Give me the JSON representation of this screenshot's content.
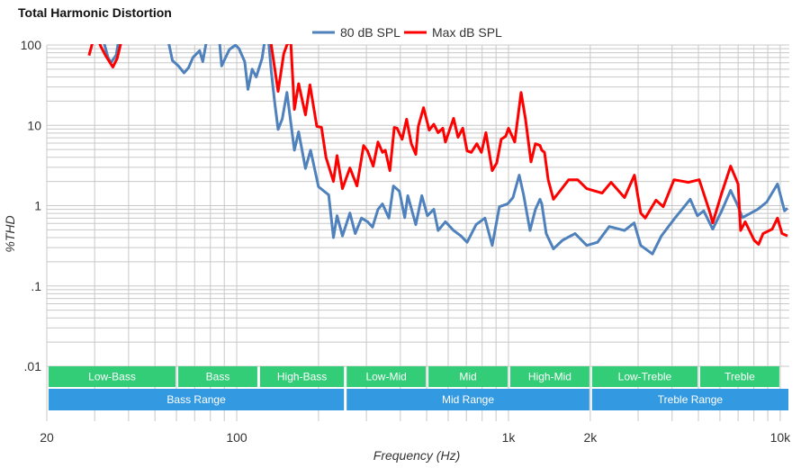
{
  "chart_data": {
    "type": "line",
    "title": "Total Harmonic Distortion",
    "xlabel": "Frequency (Hz)",
    "ylabel": "%THD",
    "xscale": "log",
    "yscale": "log",
    "xlim": [
      20,
      10800
    ],
    "ylim": [
      0.01,
      100
    ],
    "grid": true,
    "legend_position": "top-center",
    "x_ticks": [
      {
        "value": 20,
        "label": "20"
      },
      {
        "value": 100,
        "label": "100"
      },
      {
        "value": 1000,
        "label": "1k"
      },
      {
        "value": 2000,
        "label": "2k"
      },
      {
        "value": 10000,
        "label": "10k"
      }
    ],
    "y_ticks": [
      {
        "value": 100,
        "label": "100"
      },
      {
        "value": 10,
        "label": "10"
      },
      {
        "value": 1,
        "label": "1"
      },
      {
        "value": 0.1,
        "label": ".1"
      },
      {
        "value": 0.01,
        "label": ".01"
      }
    ],
    "series": [
      {
        "name": "80 dB SPL",
        "color": "#4f81bd",
        "points": [
          [
            31.6,
            150
          ],
          [
            33.6,
            70
          ],
          [
            34.4,
            60
          ],
          [
            36,
            75
          ],
          [
            37,
            130
          ],
          [
            55,
            150
          ],
          [
            58,
            64
          ],
          [
            61,
            55
          ],
          [
            64,
            45
          ],
          [
            66.5,
            52
          ],
          [
            69,
            70
          ],
          [
            73,
            85
          ],
          [
            75,
            62
          ],
          [
            78,
            130
          ],
          [
            86,
            130
          ],
          [
            88,
            55
          ],
          [
            91,
            70
          ],
          [
            94,
            88
          ],
          [
            99,
            100
          ],
          [
            102,
            90
          ],
          [
            107,
            62
          ],
          [
            110,
            28
          ],
          [
            114,
            50
          ],
          [
            118,
            40
          ],
          [
            124,
            68
          ],
          [
            128,
            140
          ],
          [
            131,
            110
          ],
          [
            134,
            47
          ],
          [
            138,
            19
          ],
          [
            142,
            8.9
          ],
          [
            147,
            12
          ],
          [
            153,
            25.7
          ],
          [
            163,
            4.9
          ],
          [
            169,
            8.3
          ],
          [
            179,
            2.9
          ],
          [
            187,
            4.9
          ],
          [
            200,
            1.72
          ],
          [
            218,
            1.36
          ],
          [
            227,
            0.4
          ],
          [
            234,
            0.75
          ],
          [
            245,
            0.42
          ],
          [
            261,
            0.81
          ],
          [
            273,
            0.45
          ],
          [
            288,
            0.7
          ],
          [
            303,
            0.63
          ],
          [
            316,
            0.54
          ],
          [
            331,
            0.9
          ],
          [
            344,
            1.05
          ],
          [
            363,
            0.7
          ],
          [
            377,
            1.76
          ],
          [
            397,
            1.51
          ],
          [
            415,
            0.71
          ],
          [
            426,
            1.33
          ],
          [
            456,
            0.58
          ],
          [
            480,
            1.33
          ],
          [
            503,
            0.75
          ],
          [
            531,
            0.9
          ],
          [
            551,
            0.49
          ],
          [
            586,
            0.63
          ],
          [
            628,
            0.49
          ],
          [
            668,
            0.42
          ],
          [
            704,
            0.35
          ],
          [
            760,
            0.58
          ],
          [
            819,
            0.7
          ],
          [
            871,
            0.32
          ],
          [
            926,
            0.97
          ],
          [
            992,
            1.05
          ],
          [
            1039,
            1.26
          ],
          [
            1095,
            2.4
          ],
          [
            1137,
            1.36
          ],
          [
            1200,
            0.49
          ],
          [
            1256,
            0.9
          ],
          [
            1306,
            1.2
          ],
          [
            1326,
            1.05
          ],
          [
            1377,
            0.45
          ],
          [
            1463,
            0.29
          ],
          [
            1580,
            0.37
          ],
          [
            1758,
            0.45
          ],
          [
            1941,
            0.32
          ],
          [
            2126,
            0.35
          ],
          [
            2348,
            0.55
          ],
          [
            2673,
            0.49
          ],
          [
            2900,
            0.61
          ],
          [
            3067,
            0.32
          ],
          [
            3386,
            0.25
          ],
          [
            3654,
            0.42
          ],
          [
            4098,
            0.7
          ],
          [
            4665,
            1.2
          ],
          [
            4956,
            0.75
          ],
          [
            5230,
            0.86
          ],
          [
            5645,
            0.51
          ],
          [
            6090,
            0.86
          ],
          [
            6570,
            1.55
          ],
          [
            6935,
            1.05
          ],
          [
            7260,
            0.71
          ],
          [
            8265,
            0.9
          ],
          [
            8920,
            1.11
          ],
          [
            9770,
            1.86
          ],
          [
            10370,
            0.86
          ],
          [
            10640,
            0.93
          ]
        ]
      },
      {
        "name": "Max dB SPL",
        "color": "#ff0000",
        "points": [
          [
            28.6,
            74
          ],
          [
            29.3,
            100
          ],
          [
            30,
            150
          ],
          [
            31.6,
            96
          ],
          [
            32.9,
            74
          ],
          [
            35,
            53
          ],
          [
            36.3,
            68
          ],
          [
            37.7,
            115
          ],
          [
            38.2,
            150
          ],
          [
            132.5,
            150
          ],
          [
            134,
            100
          ],
          [
            142,
            26.5
          ],
          [
            149,
            78
          ],
          [
            153,
            100
          ],
          [
            158,
            115
          ],
          [
            163,
            15.8
          ],
          [
            169,
            33
          ],
          [
            179,
            13.5
          ],
          [
            186,
            32
          ],
          [
            197,
            9.7
          ],
          [
            205,
            9.4
          ],
          [
            213,
            4.0
          ],
          [
            227,
            2.0
          ],
          [
            234,
            4.2
          ],
          [
            245,
            1.63
          ],
          [
            261,
            2.95
          ],
          [
            277,
            1.76
          ],
          [
            293,
            5.6
          ],
          [
            303,
            4.8
          ],
          [
            318,
            3.1
          ],
          [
            331,
            6.2
          ],
          [
            344,
            4.6
          ],
          [
            352,
            4.9
          ],
          [
            366,
            2.73
          ],
          [
            380,
            9.4
          ],
          [
            389,
            9.2
          ],
          [
            406,
            6.7
          ],
          [
            422,
            11.9
          ],
          [
            439,
            5.9
          ],
          [
            456,
            4.35
          ],
          [
            466,
            9.7
          ],
          [
            487,
            16.6
          ],
          [
            511,
            8.7
          ],
          [
            531,
            10.3
          ],
          [
            551,
            8.1
          ],
          [
            573,
            9.2
          ],
          [
            586,
            6.2
          ],
          [
            628,
            12.2
          ],
          [
            652,
            7.1
          ],
          [
            679,
            9.2
          ],
          [
            704,
            4.8
          ],
          [
            730,
            4.6
          ],
          [
            765,
            5.9
          ],
          [
            795,
            4.6
          ],
          [
            826,
            8.1
          ],
          [
            871,
            2.73
          ],
          [
            905,
            3.4
          ],
          [
            940,
            6.7
          ],
          [
            977,
            7.3
          ],
          [
            1000,
            9.2
          ],
          [
            1054,
            6.2
          ],
          [
            1113,
            25.7
          ],
          [
            1155,
            11.9
          ],
          [
            1210,
            3.5
          ],
          [
            1256,
            5.9
          ],
          [
            1306,
            5.6
          ],
          [
            1326,
            4.9
          ],
          [
            1357,
            4.6
          ],
          [
            1400,
            2.1
          ],
          [
            1463,
            1.2
          ],
          [
            1545,
            1.51
          ],
          [
            1666,
            2.1
          ],
          [
            1797,
            2.1
          ],
          [
            1941,
            1.63
          ],
          [
            2210,
            1.43
          ],
          [
            2385,
            1.95
          ],
          [
            2673,
            1.26
          ],
          [
            2906,
            2.4
          ],
          [
            3067,
            0.81
          ],
          [
            3186,
            0.7
          ],
          [
            3492,
            1.17
          ],
          [
            3711,
            0.97
          ],
          [
            4067,
            2.1
          ],
          [
            4595,
            1.95
          ],
          [
            5034,
            2.1
          ],
          [
            5520,
            0.81
          ],
          [
            5645,
            0.61
          ],
          [
            6090,
            1.43
          ],
          [
            6570,
            3.1
          ],
          [
            7000,
            1.86
          ],
          [
            7150,
            0.49
          ],
          [
            7430,
            0.63
          ],
          [
            8020,
            0.37
          ],
          [
            8330,
            0.33
          ],
          [
            8650,
            0.45
          ],
          [
            9340,
            0.51
          ],
          [
            9770,
            0.7
          ],
          [
            10150,
            0.45
          ],
          [
            10640,
            0.42
          ]
        ]
      }
    ],
    "bands": [
      {
        "label": "Low-Bass",
        "from": 20,
        "to": 60,
        "row": 1,
        "color": "#33cc77"
      },
      {
        "label": "Bass",
        "from": 60,
        "to": 120,
        "row": 1,
        "color": "#33cc77"
      },
      {
        "label": "High-Bass",
        "from": 120,
        "to": 250,
        "row": 1,
        "color": "#33cc77"
      },
      {
        "label": "Low-Mid",
        "from": 250,
        "to": 500,
        "row": 1,
        "color": "#33cc77"
      },
      {
        "label": "Mid",
        "from": 500,
        "to": 1000,
        "row": 1,
        "color": "#33cc77"
      },
      {
        "label": "High-Mid",
        "from": 1000,
        "to": 2000,
        "row": 1,
        "color": "#33cc77"
      },
      {
        "label": "Low-Treble",
        "from": 2000,
        "to": 5000,
        "row": 1,
        "color": "#33cc77"
      },
      {
        "label": "Treble",
        "from": 5000,
        "to": 10000,
        "row": 1,
        "color": "#33cc77"
      },
      {
        "label": "Bass Range",
        "from": 20,
        "to": 250,
        "row": 2,
        "color": "#3399e0"
      },
      {
        "label": "Mid Range",
        "from": 250,
        "to": 2000,
        "row": 2,
        "color": "#3399e0"
      },
      {
        "label": "Treble Range",
        "from": 2000,
        "to": 10800,
        "row": 2,
        "color": "#3399e0"
      }
    ]
  }
}
